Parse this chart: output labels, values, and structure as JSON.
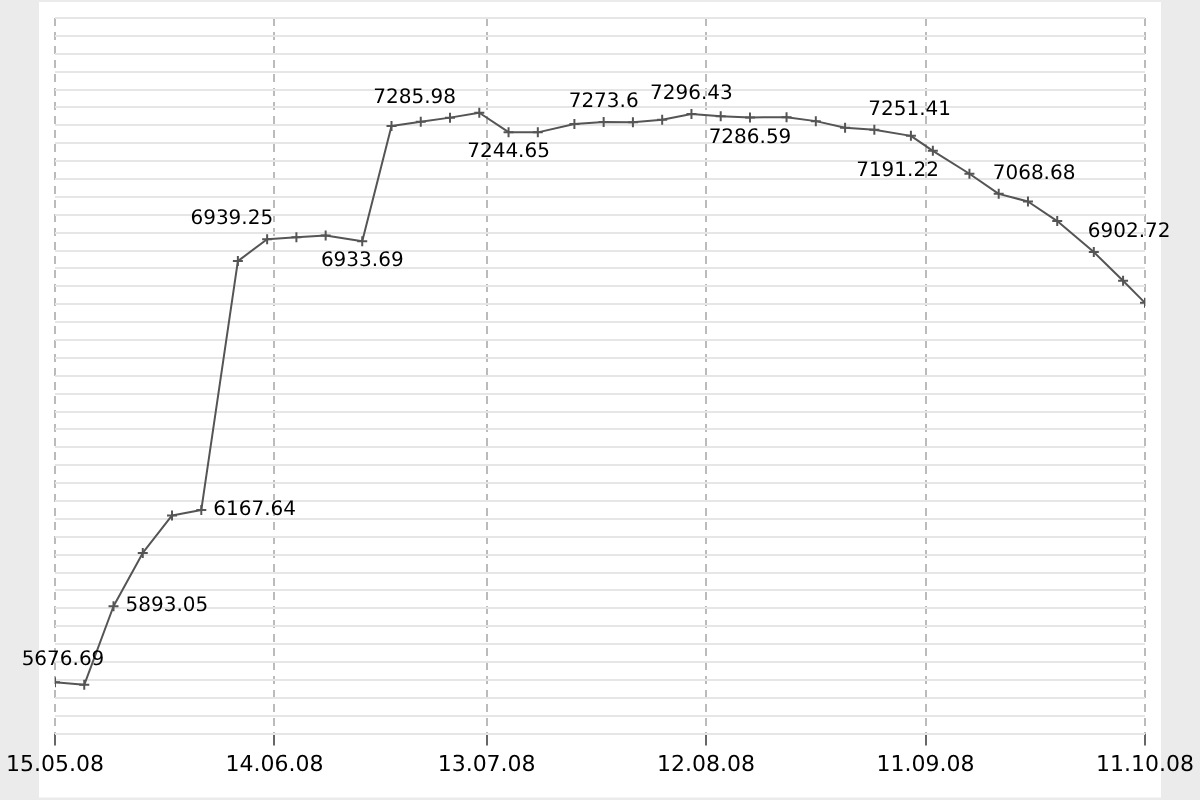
{
  "chart_data": {
    "type": "line",
    "x": [
      "2008-05-15",
      "2008-05-19",
      "2008-05-23",
      "2008-05-27",
      "2008-05-31",
      "2008-06-04",
      "2008-06-09",
      "2008-06-13",
      "2008-06-17",
      "2008-06-21",
      "2008-06-26",
      "2008-06-30",
      "2008-07-04",
      "2008-07-08",
      "2008-07-12",
      "2008-07-16",
      "2008-07-20",
      "2008-07-25",
      "2008-07-29",
      "2008-08-02",
      "2008-08-06",
      "2008-08-10",
      "2008-08-14",
      "2008-08-18",
      "2008-08-23",
      "2008-08-27",
      "2008-08-31",
      "2008-09-04",
      "2008-09-09",
      "2008-09-12",
      "2008-09-17",
      "2008-09-21",
      "2008-09-25",
      "2008-09-29",
      "2008-10-04",
      "2008-10-08",
      "2008-10-11"
    ],
    "series": [
      {
        "color": "#555555",
        "values": [
          5676.69,
          5669,
          5893.05,
          6045,
          6152,
          6167.64,
          6877,
          6939.25,
          6945,
          6950,
          6933.69,
          7262,
          7274,
          7285.98,
          7300,
          7244.65,
          7244,
          7268,
          7273.6,
          7273,
          7280,
          7296.43,
          7290,
          7286.59,
          7287,
          7276,
          7257,
          7251.41,
          7234,
          7191.22,
          7126,
          7068.68,
          7047,
          6991,
          6902.72,
          6821,
          6758
        ],
        "value_labels": [
          "5676.69",
          null,
          "5893.05",
          null,
          null,
          "6167.64",
          null,
          "6939.25",
          null,
          null,
          "6933.69",
          null,
          null,
          "7285.98",
          null,
          "7244.65",
          null,
          null,
          "7273.6",
          null,
          null,
          "7296.43",
          null,
          "7286.59",
          null,
          null,
          null,
          "7251.41",
          null,
          "7191.22",
          null,
          "7068.68",
          null,
          null,
          "6902.72",
          null,
          null
        ]
      }
    ],
    "xlim": [
      "2008-05-15",
      "2008-10-11"
    ],
    "xticks": [
      {
        "value": "2008-05-15",
        "label": "15.05.08"
      },
      {
        "value": "2008-06-14",
        "label": "14.06.08"
      },
      {
        "value": "2008-07-13",
        "label": "13.07.08"
      },
      {
        "value": "2008-08-12",
        "label": "12.08.08"
      },
      {
        "value": "2008-09-11",
        "label": "11.09.08"
      },
      {
        "value": "2008-10-11",
        "label": "11.10.08"
      }
    ],
    "ylim": [
      5530,
      7570
    ],
    "yticks": [
      {
        "value": 5530,
        "label": null
      },
      {
        "value": 5581,
        "label": null
      },
      {
        "value": 5632,
        "label": null
      },
      {
        "value": 5683,
        "label": null
      },
      {
        "value": 5734,
        "label": null
      },
      {
        "value": 5785,
        "label": null
      },
      {
        "value": 5836,
        "label": null
      },
      {
        "value": 5887,
        "label": null
      },
      {
        "value": 5938,
        "label": null
      },
      {
        "value": 5989,
        "label": null
      },
      {
        "value": 6040,
        "label": null
      },
      {
        "value": 6091,
        "label": null
      },
      {
        "value": 6142,
        "label": null
      },
      {
        "value": 6193,
        "label": null
      },
      {
        "value": 6244,
        "label": null
      },
      {
        "value": 6295,
        "label": null
      },
      {
        "value": 6346,
        "label": null
      },
      {
        "value": 6397,
        "label": null
      },
      {
        "value": 6448,
        "label": null
      },
      {
        "value": 6499,
        "label": null
      },
      {
        "value": 6550,
        "label": null
      },
      {
        "value": 6601,
        "label": null
      },
      {
        "value": 6652,
        "label": null
      },
      {
        "value": 6703,
        "label": null
      },
      {
        "value": 6754,
        "label": null
      },
      {
        "value": 6805,
        "label": null
      },
      {
        "value": 6856,
        "label": null
      },
      {
        "value": 6907,
        "label": null
      },
      {
        "value": 6958,
        "label": null
      },
      {
        "value": 7009,
        "label": null
      },
      {
        "value": 7060,
        "label": null
      },
      {
        "value": 7111,
        "label": null
      },
      {
        "value": 7162,
        "label": null
      },
      {
        "value": 7213,
        "label": null
      },
      {
        "value": 7264,
        "label": null
      },
      {
        "value": 7315,
        "label": null
      },
      {
        "value": 7366,
        "label": null
      },
      {
        "value": 7417,
        "label": null
      },
      {
        "value": 7468,
        "label": null
      },
      {
        "value": 7519,
        "label": null
      },
      {
        "value": 7570,
        "label": null
      }
    ],
    "grid": true,
    "legend": false,
    "marker": "cross",
    "line_style": "solid"
  }
}
